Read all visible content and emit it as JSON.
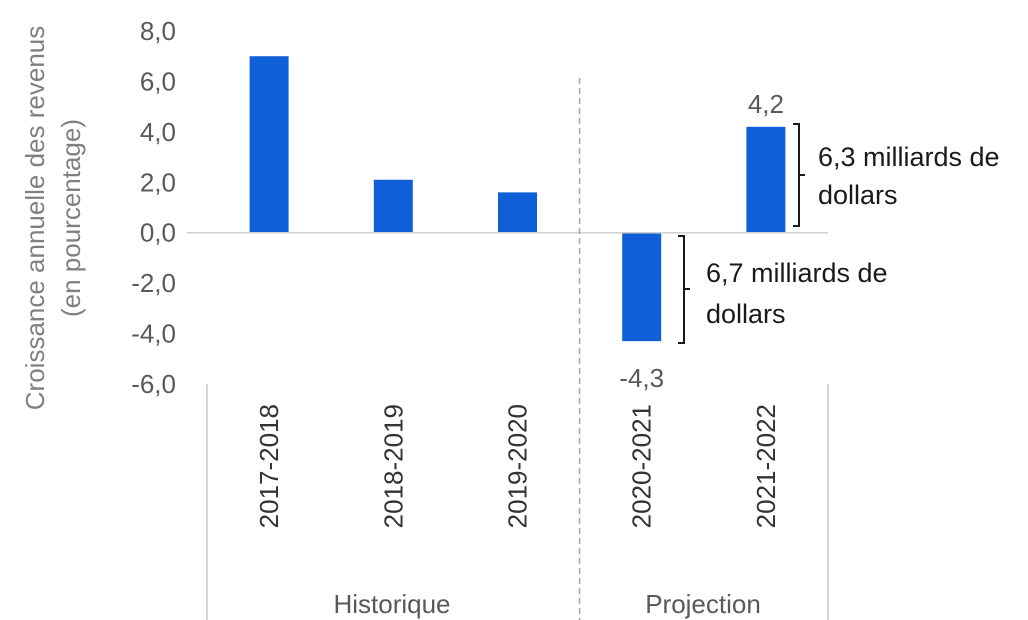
{
  "chart_data": {
    "type": "bar",
    "ylabel_line1": "Croissance annuelle des revenus",
    "ylabel_line2": "(en pourcentage)",
    "categories": [
      "2017-2018",
      "2018-2019",
      "2019-2020",
      "2020-2021",
      "2021-2022"
    ],
    "values": [
      7.0,
      2.1,
      1.6,
      -4.3,
      4.2
    ],
    "data_labels": [
      "",
      "",
      "",
      "-4,3",
      "4,2"
    ],
    "ylim": [
      -6,
      8
    ],
    "yticks": [
      "-6,0",
      "-4,0",
      "-2,0",
      "0,0",
      "2,0",
      "4,0",
      "6,0",
      "8,0"
    ],
    "groups": [
      {
        "label": "Historique",
        "categories": [
          "2017-2018",
          "2018-2019",
          "2019-2020"
        ]
      },
      {
        "label": "Projection",
        "categories": [
          "2020-2021",
          "2021-2022"
        ]
      }
    ],
    "annotations": [
      {
        "line1": "6,3 milliards de",
        "line2": "dollars",
        "applies_to": "2021-2022"
      },
      {
        "line1": "6,7 milliards de",
        "line2": "dollars",
        "applies_to": "2020-2021"
      }
    ],
    "bar_color": "#0f5fd8",
    "grid": false
  }
}
